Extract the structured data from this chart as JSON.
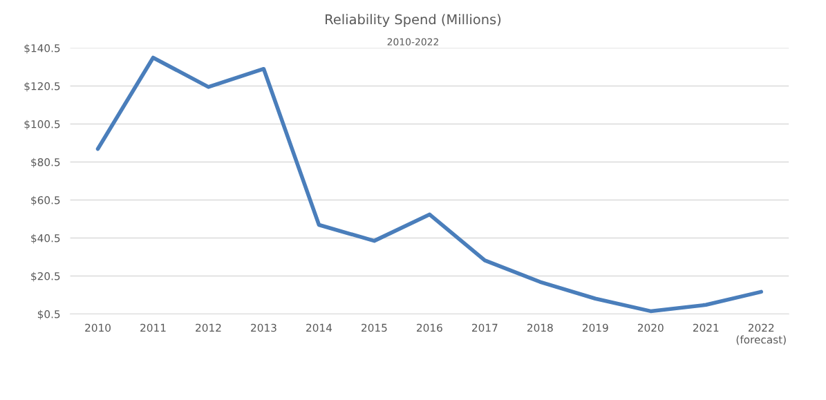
{
  "chart_data": {
    "type": "line",
    "title": "Reliability Spend (Millions)",
    "subtitle": "2010-2022",
    "categories": [
      "2010",
      "2011",
      "2012",
      "2013",
      "2014",
      "2015",
      "2016",
      "2017",
      "2018",
      "2019",
      "2020",
      "2021",
      "2022\n(forecast)"
    ],
    "series": [
      {
        "color": "#4a7ebb",
        "values": [
          87.4,
          135.4,
          120,
          129.5,
          47.4,
          39,
          52.9,
          28.7,
          17.4,
          8.6,
          2,
          5.3,
          12.2
        ]
      }
    ],
    "ylim": [
      0.5,
      140.5
    ],
    "yticks": [
      {
        "value": 0.5,
        "label": "$0.5"
      },
      {
        "value": 20.5,
        "label": "$20.5"
      },
      {
        "value": 40.5,
        "label": "$40.5"
      },
      {
        "value": 60.5,
        "label": "$60.5"
      },
      {
        "value": 80.5,
        "label": "$80.5"
      },
      {
        "value": 100.5,
        "label": "$100.5"
      },
      {
        "value": 120.5,
        "label": "$120.5"
      },
      {
        "value": 140.5,
        "label": "$140.5"
      }
    ],
    "grid": "y",
    "marker": "none",
    "line_style": "solid",
    "legend": false
  }
}
